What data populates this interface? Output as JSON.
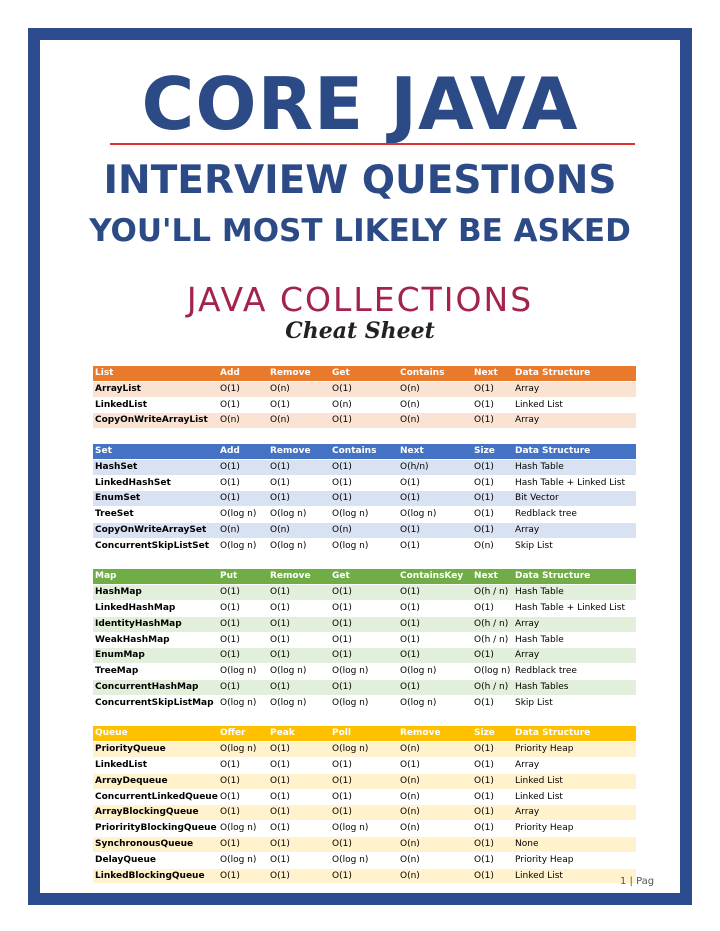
{
  "header": {
    "title": "CORE JAVA",
    "subtitle": "INTERVIEW QUESTIONS",
    "tagline": "YOU'LL MOST LIKELY BE ASKED"
  },
  "section": {
    "title": "JAVA COLLECTIONS",
    "subtitle": "Cheat Sheet"
  },
  "tables": [
    {
      "header": [
        "List",
        "Add",
        "Remove",
        "Get",
        "Contains",
        "Next",
        "Data Structure"
      ],
      "rows": [
        [
          "ArrayList",
          "O(1)",
          "O(n)",
          "O(1)",
          "O(n)",
          "O(1)",
          "Array"
        ],
        [
          "LinkedList",
          "O(1)",
          "O(1)",
          "O(n)",
          "O(n)",
          "O(1)",
          "Linked List"
        ],
        [
          "CopyOnWriteArrayList",
          "O(n)",
          "O(n)",
          "O(1)",
          "O(n)",
          "O(1)",
          "Array"
        ]
      ]
    },
    {
      "header": [
        "Set",
        "Add",
        "Remove",
        "Contains",
        "Next",
        "Size",
        "Data Structure"
      ],
      "rows": [
        [
          "HashSet",
          "O(1)",
          "O(1)",
          "O(1)",
          "O(h/n)",
          "O(1)",
          "Hash Table"
        ],
        [
          "LinkedHashSet",
          "O(1)",
          "O(1)",
          "O(1)",
          "O(1)",
          "O(1)",
          "Hash Table + Linked List"
        ],
        [
          "EnumSet",
          "O(1)",
          "O(1)",
          "O(1)",
          "O(1)",
          "O(1)",
          "Bit Vector"
        ],
        [
          "TreeSet",
          "O(log n)",
          "O(log n)",
          "O(log n)",
          "O(log n)",
          "O(1)",
          "Redblack tree"
        ],
        [
          "CopyOnWriteArraySet",
          "O(n)",
          "O(n)",
          "O(n)",
          "O(1)",
          "O(1)",
          "Array"
        ],
        [
          "ConcurrentSkipListSet",
          "O(log n)",
          "O(log n)",
          "O(log n)",
          "O(1)",
          "O(n)",
          "Skip List"
        ]
      ]
    },
    {
      "header": [
        "Map",
        "Put",
        "Remove",
        "Get",
        "ContainsKey",
        "Next",
        "Data Structure"
      ],
      "rows": [
        [
          "HashMap",
          "O(1)",
          "O(1)",
          "O(1)",
          "O(1)",
          "O(h / n)",
          "Hash Table"
        ],
        [
          "LinkedHashMap",
          "O(1)",
          "O(1)",
          "O(1)",
          "O(1)",
          "O(1)",
          "Hash Table + Linked List"
        ],
        [
          "IdentityHashMap",
          "O(1)",
          "O(1)",
          "O(1)",
          "O(1)",
          "O(h / n)",
          "Array"
        ],
        [
          "WeakHashMap",
          "O(1)",
          "O(1)",
          "O(1)",
          "O(1)",
          "O(h / n)",
          "Hash Table"
        ],
        [
          "EnumMap",
          "O(1)",
          "O(1)",
          "O(1)",
          "O(1)",
          "O(1)",
          "Array"
        ],
        [
          "TreeMap",
          "O(log n)",
          "O(log n)",
          "O(log n)",
          "O(log n)",
          "O(log n)",
          "Redblack tree"
        ],
        [
          "ConcurrentHashMap",
          "O(1)",
          "O(1)",
          "O(1)",
          "O(1)",
          "O(h / n)",
          "Hash Tables"
        ],
        [
          "ConcurrentSkipListMap",
          "O(log n)",
          "O(log n)",
          "O(log n)",
          "O(log n)",
          "O(1)",
          "Skip List"
        ]
      ]
    },
    {
      "header": [
        "Queue",
        "Offer",
        "Peak",
        "Poll",
        "Remove",
        "Size",
        "Data Structure"
      ],
      "rows": [
        [
          "PriorityQueue",
          "O(log n)",
          "O(1)",
          "O(log n)",
          "O(n)",
          "O(1)",
          "Priority Heap"
        ],
        [
          "LinkedList",
          "O(1)",
          "O(1)",
          "O(1)",
          "O(1)",
          "O(1)",
          "Array"
        ],
        [
          "ArrayDequeue",
          "O(1)",
          "O(1)",
          "O(1)",
          "O(n)",
          "O(1)",
          "Linked List"
        ],
        [
          "ConcurrentLinkedQueue",
          "O(1)",
          "O(1)",
          "O(1)",
          "O(n)",
          "O(1)",
          "Linked List"
        ],
        [
          "ArrayBlockingQueue",
          "O(1)",
          "O(1)",
          "O(1)",
          "O(n)",
          "O(1)",
          "Array"
        ],
        [
          "PriorirityBlockingQueue",
          "O(log n)",
          "O(1)",
          "O(log n)",
          "O(n)",
          "O(1)",
          "Priority Heap"
        ],
        [
          "SynchronousQueue",
          "O(1)",
          "O(1)",
          "O(1)",
          "O(n)",
          "O(1)",
          "None"
        ],
        [
          "DelayQueue",
          "O(log n)",
          "O(1)",
          "O(log n)",
          "O(n)",
          "O(1)",
          "Priority Heap"
        ],
        [
          "LinkedBlockingQueue",
          "O(1)",
          "O(1)",
          "O(1)",
          "O(n)",
          "O(1)",
          "Linked List"
        ]
      ]
    }
  ],
  "footer": {
    "page": "1 | Pag"
  }
}
